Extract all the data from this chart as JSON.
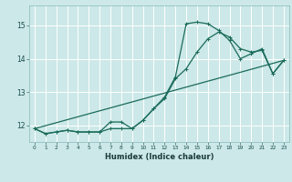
{
  "xlabel": "Humidex (Indice chaleur)",
  "bg_color": "#cce8e8",
  "line_color": "#1a6b5a",
  "grid_color": "#ffffff",
  "xlim": [
    -0.5,
    23.5
  ],
  "ylim": [
    11.5,
    15.6
  ],
  "xticks": [
    0,
    1,
    2,
    3,
    4,
    5,
    6,
    7,
    8,
    9,
    10,
    11,
    12,
    13,
    14,
    15,
    16,
    17,
    18,
    19,
    20,
    21,
    22,
    23
  ],
  "yticks": [
    12,
    13,
    14,
    15
  ],
  "line1_x": [
    0,
    1,
    2,
    3,
    4,
    5,
    6,
    7,
    8,
    9,
    10,
    11,
    12,
    13,
    14,
    15,
    16,
    17,
    18,
    19,
    20,
    21,
    22,
    23
  ],
  "line1_y": [
    11.9,
    11.75,
    11.8,
    11.85,
    11.8,
    11.8,
    11.8,
    11.9,
    11.9,
    11.9,
    12.15,
    12.5,
    12.8,
    13.4,
    13.7,
    14.2,
    14.6,
    14.8,
    14.65,
    14.3,
    14.2,
    14.25,
    13.55,
    13.95
  ],
  "line2_x": [
    0,
    1,
    2,
    3,
    4,
    5,
    6,
    7,
    8,
    9,
    10,
    11,
    12,
    13,
    14,
    15,
    16,
    17,
    18,
    19,
    20,
    21,
    22,
    23
  ],
  "line2_y": [
    11.9,
    11.75,
    11.8,
    11.85,
    11.8,
    11.8,
    11.8,
    12.1,
    12.1,
    11.9,
    12.15,
    12.5,
    12.85,
    13.45,
    15.05,
    15.1,
    15.05,
    14.85,
    14.55,
    14.0,
    14.15,
    14.3,
    13.55,
    13.95
  ],
  "line3_x": [
    0,
    23
  ],
  "line3_y": [
    11.9,
    13.95
  ]
}
